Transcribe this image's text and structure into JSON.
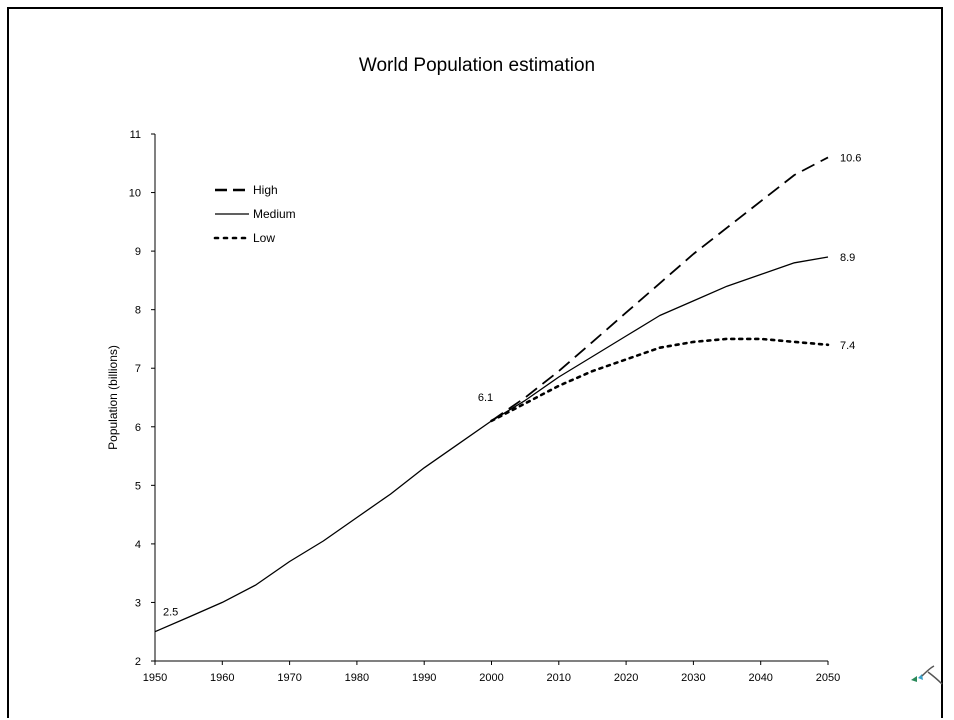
{
  "chart_data": {
    "type": "line",
    "title": "World Population estimation",
    "ylabel": "Population (billions)",
    "xlabel": "",
    "xlim": [
      1950,
      2050
    ],
    "ylim": [
      2,
      11
    ],
    "x_ticks": [
      1950,
      1960,
      1970,
      1980,
      1990,
      2000,
      2010,
      2020,
      2030,
      2040,
      2050
    ],
    "y_ticks": [
      2,
      3,
      4,
      5,
      6,
      7,
      8,
      9,
      10,
      11
    ],
    "grid": false,
    "legend_position": "top-left",
    "series": [
      {
        "name": "High",
        "style": "dashed",
        "x": [
          2000,
          2005,
          2010,
          2015,
          2020,
          2025,
          2030,
          2035,
          2040,
          2045,
          2050
        ],
        "values": [
          6.1,
          6.5,
          6.95,
          7.45,
          7.95,
          8.45,
          8.95,
          9.4,
          9.85,
          10.3,
          10.6
        ]
      },
      {
        "name": "Medium",
        "style": "solid",
        "x": [
          1950,
          1955,
          1960,
          1965,
          1970,
          1975,
          1980,
          1985,
          1990,
          1995,
          2000,
          2005,
          2010,
          2015,
          2020,
          2025,
          2030,
          2035,
          2040,
          2045,
          2050
        ],
        "values": [
          2.5,
          2.75,
          3.0,
          3.3,
          3.7,
          4.05,
          4.45,
          4.85,
          5.3,
          5.7,
          6.1,
          6.45,
          6.85,
          7.2,
          7.55,
          7.9,
          8.15,
          8.4,
          8.6,
          8.8,
          8.9
        ]
      },
      {
        "name": "Low",
        "style": "dotted",
        "x": [
          2000,
          2005,
          2010,
          2015,
          2020,
          2025,
          2030,
          2035,
          2040,
          2045,
          2050
        ],
        "values": [
          6.1,
          6.4,
          6.7,
          6.95,
          7.15,
          7.35,
          7.45,
          7.5,
          7.5,
          7.45,
          7.4
        ]
      }
    ],
    "annotations": [
      {
        "text": "2.5",
        "x": 1950,
        "y": 2.5
      },
      {
        "text": "6.1",
        "x": 2000,
        "y": 6.1
      },
      {
        "text": "10.6",
        "x": 2050,
        "y": 10.6
      },
      {
        "text": "8.9",
        "x": 2050,
        "y": 8.9
      },
      {
        "text": "7.4",
        "x": 2050,
        "y": 7.4
      }
    ]
  },
  "colors": {
    "line": "#000000",
    "background": "#ffffff"
  },
  "icons": {
    "corner": "leaf-logo-icon"
  }
}
